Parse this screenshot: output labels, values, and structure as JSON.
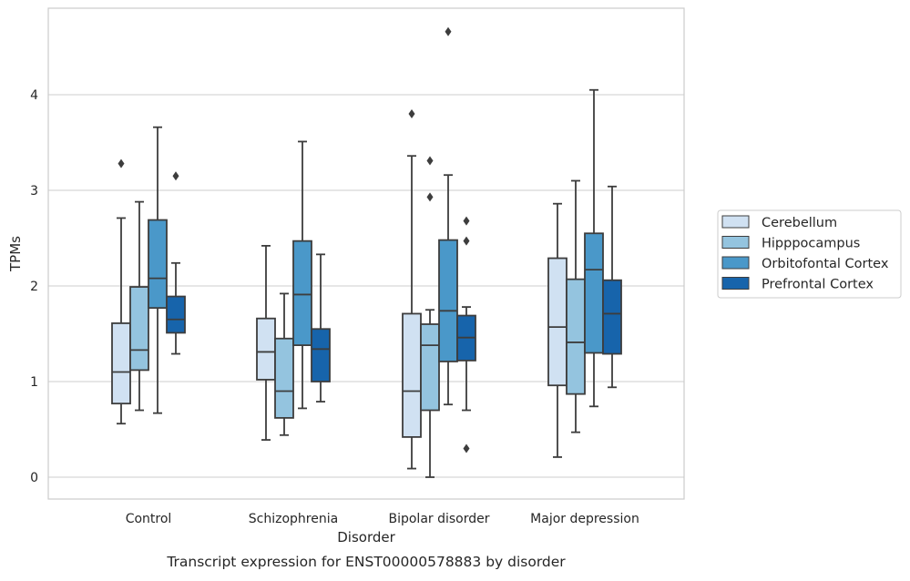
{
  "chart_data": {
    "type": "boxplot",
    "title": "",
    "caption": "Transcript expression for ENST00000578883 by disorder",
    "xlabel": "Disorder",
    "ylabel": "TPMs",
    "ylim": [
      -0.22,
      4.9
    ],
    "yticks": [
      0,
      1,
      2,
      3,
      4
    ],
    "ytick_labels": [
      "0",
      "1",
      "2",
      "3",
      "4"
    ],
    "grid": "horizontal",
    "legend_position": "right",
    "categories": [
      "Control",
      "Schizophrenia",
      "Bipolar disorder",
      "Major depression"
    ],
    "series": [
      {
        "name": "Cerebellum",
        "color": "#d0e1f2",
        "boxes": [
          {
            "whislo": 0.56,
            "q1": 0.77,
            "med": 1.1,
            "q3": 1.61,
            "whishi": 2.71,
            "fliers": [
              3.28
            ]
          },
          {
            "whislo": 0.39,
            "q1": 1.02,
            "med": 1.31,
            "q3": 1.66,
            "whishi": 2.42,
            "fliers": []
          },
          {
            "whislo": 0.09,
            "q1": 0.42,
            "med": 0.9,
            "q3": 1.71,
            "whishi": 3.36,
            "fliers": [
              3.8
            ]
          },
          {
            "whislo": 0.21,
            "q1": 0.96,
            "med": 1.57,
            "q3": 2.29,
            "whishi": 2.86,
            "fliers": []
          }
        ]
      },
      {
        "name": "Hipppocampus",
        "color": "#94c4df",
        "boxes": [
          {
            "whislo": 0.7,
            "q1": 1.12,
            "med": 1.33,
            "q3": 1.99,
            "whishi": 2.88,
            "fliers": []
          },
          {
            "whislo": 0.44,
            "q1": 0.62,
            "med": 0.9,
            "q3": 1.45,
            "whishi": 1.92,
            "fliers": []
          },
          {
            "whislo": 0.0,
            "q1": 0.7,
            "med": 1.38,
            "q3": 1.6,
            "whishi": 1.75,
            "fliers": [
              2.93,
              3.31
            ]
          },
          {
            "whislo": 0.47,
            "q1": 0.87,
            "med": 1.41,
            "q3": 2.07,
            "whishi": 3.1,
            "fliers": []
          }
        ]
      },
      {
        "name": "Orbitofontal Cortex",
        "color": "#4a98c9",
        "boxes": [
          {
            "whislo": 0.67,
            "q1": 1.77,
            "med": 2.08,
            "q3": 2.69,
            "whishi": 3.66,
            "fliers": []
          },
          {
            "whislo": 0.72,
            "q1": 1.38,
            "med": 1.91,
            "q3": 2.47,
            "whishi": 3.51,
            "fliers": []
          },
          {
            "whislo": 0.76,
            "q1": 1.21,
            "med": 1.74,
            "q3": 2.48,
            "whishi": 3.16,
            "fliers": [
              4.66
            ]
          },
          {
            "whislo": 0.74,
            "q1": 1.3,
            "med": 2.17,
            "q3": 2.55,
            "whishi": 4.05,
            "fliers": []
          }
        ]
      },
      {
        "name": "Prefrontal Cortex",
        "color": "#1764ab",
        "boxes": [
          {
            "whislo": 1.29,
            "q1": 1.51,
            "med": 1.65,
            "q3": 1.89,
            "whishi": 2.24,
            "fliers": [
              3.15
            ]
          },
          {
            "whislo": 0.79,
            "q1": 1.0,
            "med": 1.34,
            "q3": 1.55,
            "whishi": 2.33,
            "fliers": []
          },
          {
            "whislo": 0.7,
            "q1": 1.22,
            "med": 1.46,
            "q3": 1.69,
            "whishi": 1.78,
            "fliers": [
              0.3,
              2.47,
              2.68
            ]
          },
          {
            "whislo": 0.94,
            "q1": 1.29,
            "med": 1.71,
            "q3": 2.06,
            "whishi": 3.04,
            "fliers": []
          }
        ]
      }
    ]
  }
}
